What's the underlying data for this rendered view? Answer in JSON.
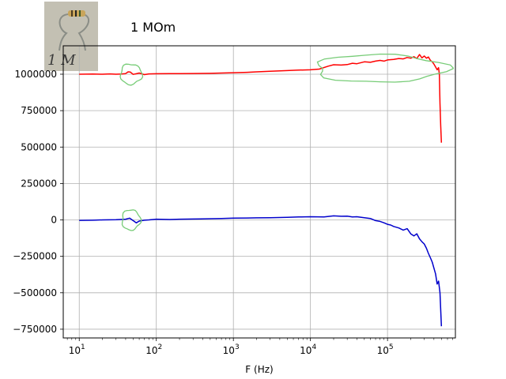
{
  "chart_data": {
    "type": "line",
    "title": "1 MOm",
    "xlabel": "F (Hz)",
    "ylabel": "",
    "x_scale": "log",
    "xlim": [
      6.2,
      760000
    ],
    "ylim": [
      -810000,
      1195000
    ],
    "grid": true,
    "x_ticks": [
      10,
      100,
      1000,
      10000,
      100000
    ],
    "x_tick_labels": [
      {
        "base": "10",
        "exp": "1"
      },
      {
        "base": "10",
        "exp": "2"
      },
      {
        "base": "10",
        "exp": "3"
      },
      {
        "base": "10",
        "exp": "4"
      },
      {
        "base": "10",
        "exp": "5"
      }
    ],
    "y_ticks": [
      1000000,
      750000,
      500000,
      250000,
      0,
      -250000,
      -500000,
      -750000
    ],
    "y_tick_labels": [
      "1000000",
      "750000",
      "500000",
      "250000",
      "0",
      "−250000",
      "−500000",
      "−750000"
    ],
    "inset_photo_text": "1 M",
    "series": [
      {
        "color": "#ff0000",
        "x": [
          10,
          15,
          20,
          25,
          30,
          35,
          40,
          43,
          46,
          50,
          55,
          60,
          70,
          80,
          100,
          150,
          200,
          300,
          500,
          700,
          1000,
          1500,
          2000,
          3000,
          5000,
          7000,
          10000,
          13000,
          17000,
          20000,
          25000,
          30000,
          35000,
          40000,
          50000,
          60000,
          70000,
          80000,
          90000,
          100000,
          120000,
          140000,
          160000,
          180000,
          200000,
          220000,
          240000,
          260000,
          280000,
          300000,
          320000,
          340000,
          360000,
          380000,
          400000,
          420000,
          440000,
          460000,
          470000,
          480000,
          490000,
          500000
        ],
        "y": [
          1000000,
          1001000,
          1000000,
          1002000,
          1000000,
          1001000,
          1004000,
          1016000,
          1015000,
          999000,
          1003000,
          1008000,
          997000,
          1002000,
          1003000,
          1004000,
          1004000,
          1005000,
          1006000,
          1008000,
          1010000,
          1013000,
          1016000,
          1020000,
          1025000,
          1028000,
          1030000,
          1035000,
          1055000,
          1065000,
          1063000,
          1066000,
          1075000,
          1072000,
          1085000,
          1082000,
          1090000,
          1095000,
          1090000,
          1098000,
          1102000,
          1108000,
          1105000,
          1115000,
          1110000,
          1120000,
          1108000,
          1135000,
          1112000,
          1125000,
          1110000,
          1118000,
          1095000,
          1085000,
          1070000,
          1050000,
          1030000,
          1045000,
          1000000,
          800000,
          650000,
          530000
        ]
      },
      {
        "color": "#0000cc",
        "x": [
          10,
          15,
          20,
          30,
          40,
          45,
          50,
          55,
          60,
          70,
          80,
          100,
          150,
          200,
          300,
          500,
          700,
          1000,
          1500,
          2000,
          3000,
          5000,
          7000,
          10000,
          15000,
          20000,
          25000,
          30000,
          35000,
          40000,
          50000,
          60000,
          70000,
          80000,
          90000,
          100000,
          110000,
          120000,
          140000,
          160000,
          180000,
          200000,
          220000,
          240000,
          260000,
          280000,
          300000,
          320000,
          340000,
          360000,
          380000,
          400000,
          420000,
          440000,
          460000,
          480000,
          500000
        ],
        "y": [
          -3000,
          -2000,
          0,
          2000,
          5000,
          12000,
          -5000,
          -20000,
          -8000,
          -2000,
          0,
          5000,
          3000,
          5000,
          6000,
          8000,
          10000,
          12000,
          13000,
          14000,
          15000,
          18000,
          20000,
          22000,
          20000,
          28000,
          25000,
          26000,
          20000,
          22000,
          15000,
          10000,
          -5000,
          -10000,
          -20000,
          -30000,
          -35000,
          -45000,
          -55000,
          -70000,
          -60000,
          -95000,
          -110000,
          -95000,
          -130000,
          -150000,
          -165000,
          -195000,
          -230000,
          -260000,
          -290000,
          -330000,
          -370000,
          -440000,
          -420000,
          -500000,
          -730000
        ]
      }
    ],
    "annotations": [
      {
        "type": "loop",
        "color": "#77cc77",
        "center_x": 47,
        "center_y": 1000000,
        "rx_decades": 0.14,
        "ry": 70000
      },
      {
        "type": "loop",
        "color": "#77cc77",
        "center_x": 47,
        "center_y": 0,
        "rx_decades": 0.12,
        "ry": 70000
      },
      {
        "type": "loop",
        "color": "#77cc77",
        "center_x": 80000,
        "center_y": 1040000,
        "rx_decades": 0.85,
        "ry": 95000
      }
    ]
  }
}
